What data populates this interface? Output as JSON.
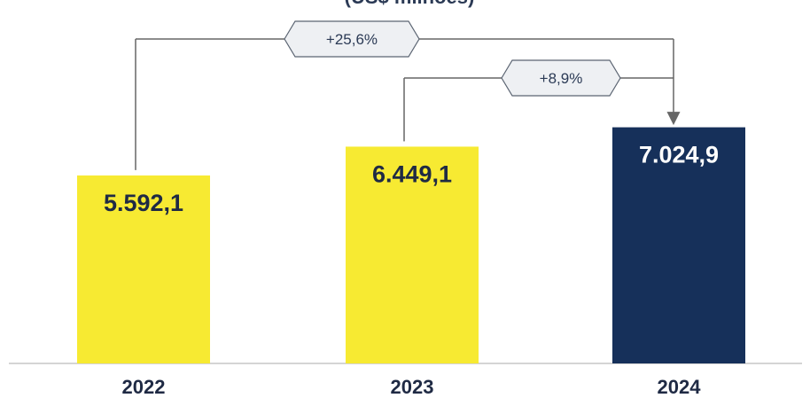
{
  "chart_data": {
    "type": "bar",
    "title": "(US$ milhões)",
    "categories": [
      "2022",
      "2023",
      "2024"
    ],
    "values": [
      5592.1,
      6449.1,
      7024.9
    ],
    "value_labels": [
      "5.592,1",
      "6.449,1",
      "7.024,9"
    ],
    "ylim": [
      0,
      7700
    ],
    "grid": false,
    "bar_colors": [
      "#f7ea32",
      "#f7ea32",
      "#16305a"
    ],
    "value_label_colors": [
      "#1f2a44",
      "#1f2a44",
      "#ffffff"
    ],
    "annotations": [
      {
        "label": "+25,6%",
        "from": "2022",
        "to": "2024"
      },
      {
        "label": "+8,9%",
        "from": "2023",
        "to": "2024"
      }
    ]
  }
}
